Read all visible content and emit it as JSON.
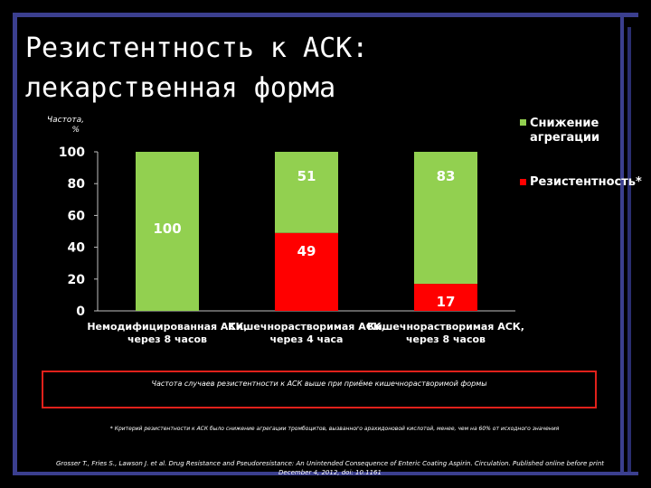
{
  "slide": {
    "title_line1": "Резистентность к АСК:",
    "title_line2": "лекарственная форма",
    "note": "Частота случаев резистентности к АСК выше при приёме кишечнорастворимой формы",
    "footnote": "* Критерий резистентности к АСК было снижение агрегации тромбоцитов, вызванного арахидоновой кислотой, менее, чем на 60% от исходного значения",
    "reference_line1": "Grosser T., Fries S., Lawson J. et al. Drug Resistance and Pseudoresistance: An Unintended Consequence of Enteric Coating Aspirin. Circulation. Published online before print",
    "reference_line2": "December 4, 2012, doi: 10.1161"
  },
  "colors": {
    "green": "#92d050",
    "red": "#ff0000",
    "background": "#000000",
    "frame": "#3b3f8f"
  },
  "chart_data": {
    "type": "bar",
    "stacked": true,
    "ylabel_line1": "Частота,",
    "ylabel_line2": "%",
    "ylim": [
      0,
      100
    ],
    "yticks": [
      "0",
      "20",
      "40",
      "60",
      "80",
      "100"
    ],
    "categories": [
      [
        "Немодифицированная АСК,",
        "через 8 часов"
      ],
      [
        "Кишечнорастворимая АСК,",
        "через 4 часа"
      ],
      [
        "Кишечнорастворимая АСК,",
        "через 8 часов"
      ]
    ],
    "series": [
      {
        "name": "Резистентность*",
        "color": "#ff0000",
        "values": [
          0,
          49,
          17
        ],
        "labels": [
          "",
          "49",
          "17"
        ]
      },
      {
        "name": "Снижение агрегации",
        "color": "#92d050",
        "values": [
          100,
          51,
          83
        ],
        "labels": [
          "100",
          "51",
          "83"
        ]
      }
    ],
    "legend_position": "right"
  }
}
